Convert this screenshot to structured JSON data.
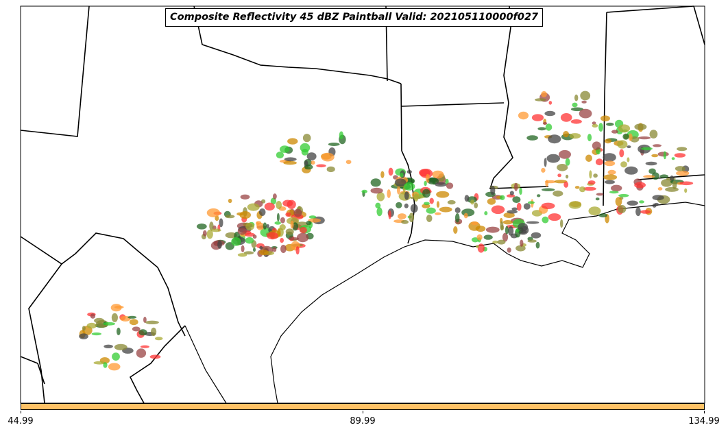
{
  "title": "Composite Reflectivity 45 dBZ Paintball Valid: 202105110000f027",
  "colorbar": {
    "color": "#ffc266",
    "ticks": [
      "44.99",
      "89.99",
      "134.99"
    ]
  },
  "map_data": {
    "type": "paintball",
    "region": "Texas and Gulf Coast",
    "threshold": "45 dBZ",
    "member_colors": [
      "#ff3333",
      "#33cc33",
      "#ff9933",
      "#994444",
      "#888833",
      "#444444",
      "#aaaa33",
      "#cc8800",
      "#226622"
    ],
    "boundary_color": "#000000"
  }
}
